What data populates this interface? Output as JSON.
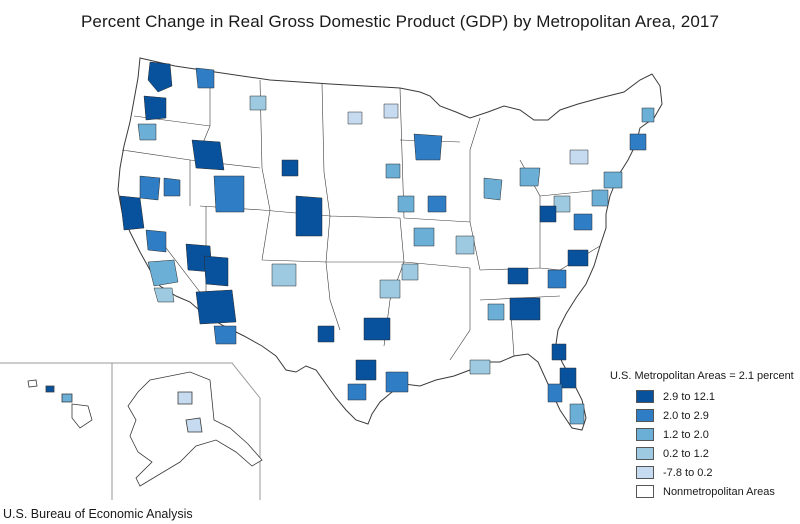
{
  "title": "Percent Change in Real Gross Domestic Product (GDP) by Metropolitan Area, 2017",
  "legend": {
    "title": "U.S. Metropolitan Areas = 2.1 percent",
    "items": [
      {
        "label": "2.9 to 12.1",
        "color": "#08519c"
      },
      {
        "label": "2.0 to 2.9",
        "color": "#2f7dc4"
      },
      {
        "label": "1.2 to 2.0",
        "color": "#6baed6"
      },
      {
        "label": "0.2 to 1.2",
        "color": "#9ecae1"
      },
      {
        "label": "-7.8 to 0.2",
        "color": "#c6dbef"
      },
      {
        "label": "Nonmetropolitan Areas",
        "color": "#ffffff"
      }
    ]
  },
  "source": "U.S. Bureau of Economic Analysis",
  "map": {
    "region": "United States (with Alaska and Hawaii insets)",
    "colors": {
      "outline": "#3a3a3a",
      "nonmetro": "#ffffff"
    }
  }
}
